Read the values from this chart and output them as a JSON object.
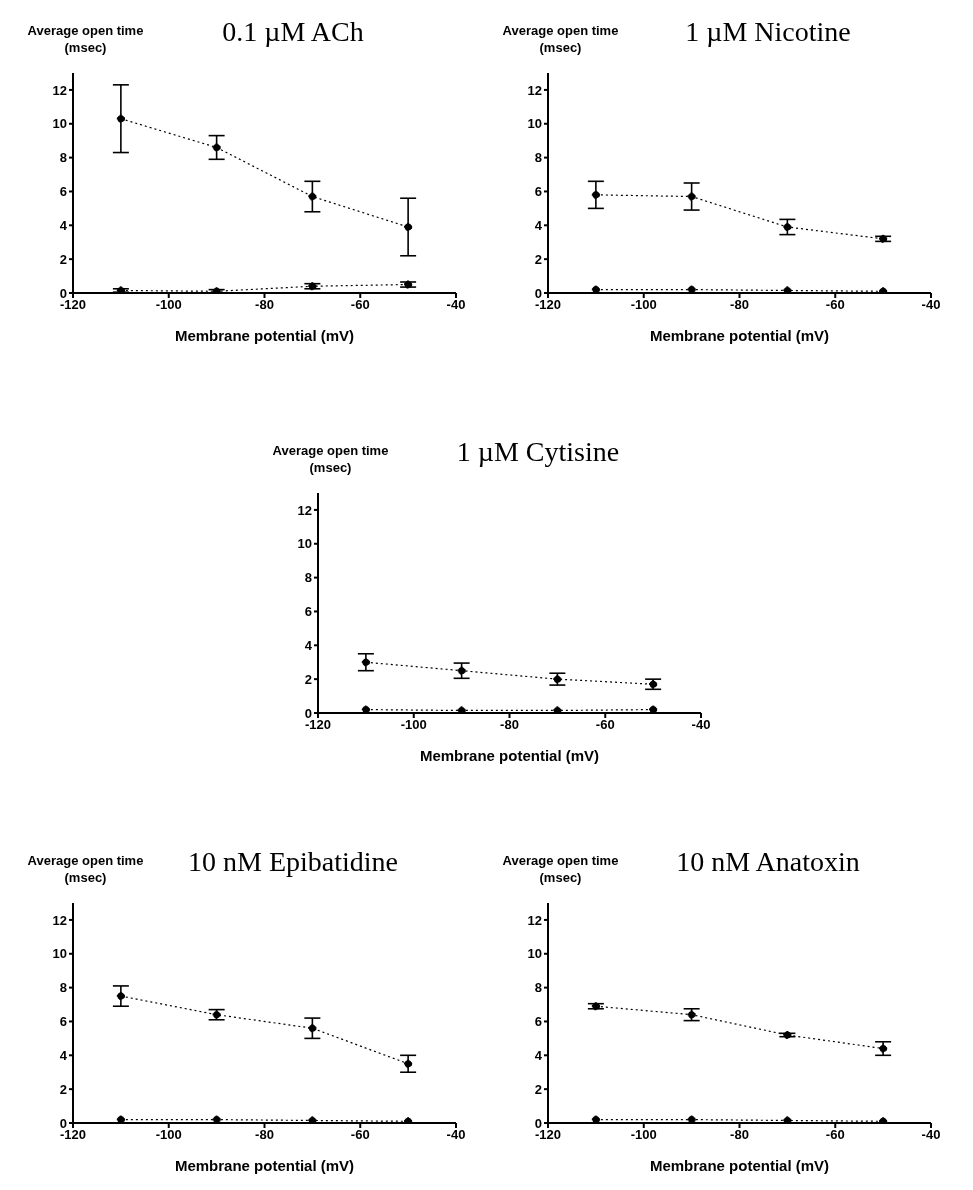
{
  "chart_data": [
    {
      "type": "line",
      "title": "0.1 µM ACh",
      "xlabel": "Membrane potential (mV)",
      "ylabel": "Average open time (msec)",
      "x": [
        -110,
        -90,
        -70,
        -50
      ],
      "xlim": [
        -120,
        -40
      ],
      "xticks": [
        -120,
        -100,
        -80,
        -60,
        -40
      ],
      "ylim": [
        0,
        13
      ],
      "yticks": [
        0,
        2,
        4,
        6,
        8,
        10,
        12
      ],
      "marker": "circle",
      "line_style": "dotted",
      "series": [
        {
          "color": "#000000",
          "values": [
            10.3,
            8.6,
            5.7,
            3.9
          ],
          "errors": [
            2.0,
            0.7,
            0.9,
            1.7
          ]
        },
        {
          "color": "#000000",
          "values": [
            0.15,
            0.1,
            0.4,
            0.5
          ],
          "errors": [
            0.1,
            0.1,
            0.15,
            0.15
          ]
        }
      ]
    },
    {
      "type": "line",
      "title": "1 µM Nicotine",
      "xlabel": "Membrane potential (mV)",
      "ylabel": "Average open time (msec)",
      "x": [
        -110,
        -90,
        -70,
        -50
      ],
      "xlim": [
        -120,
        -40
      ],
      "xticks": [
        -120,
        -100,
        -80,
        -60,
        -40
      ],
      "ylim": [
        0,
        13
      ],
      "yticks": [
        0,
        2,
        4,
        6,
        8,
        10,
        12
      ],
      "marker": "circle",
      "line_style": "dotted",
      "series": [
        {
          "color": "#000000",
          "values": [
            5.8,
            5.7,
            3.9,
            3.2
          ],
          "errors": [
            0.8,
            0.8,
            0.45,
            0.15
          ]
        },
        {
          "color": "#000000",
          "values": [
            0.2,
            0.2,
            0.15,
            0.1
          ]
        }
      ]
    },
    {
      "type": "line",
      "title": "1 µM Cytisine",
      "xlabel": "Membrane potential (mV)",
      "ylabel": "Average open time (msec)",
      "x": [
        -110,
        -90,
        -70,
        -50
      ],
      "xlim": [
        -120,
        -40
      ],
      "xticks": [
        -120,
        -100,
        -80,
        -60,
        -40
      ],
      "ylim": [
        0,
        13
      ],
      "yticks": [
        0,
        2,
        4,
        6,
        8,
        10,
        12
      ],
      "marker": "circle",
      "line_style": "dotted",
      "series": [
        {
          "color": "#000000",
          "values": [
            3.0,
            2.5,
            2.0,
            1.7
          ],
          "errors": [
            0.5,
            0.45,
            0.35,
            0.3
          ]
        },
        {
          "color": "#000000",
          "values": [
            0.2,
            0.15,
            0.15,
            0.2
          ]
        }
      ]
    },
    {
      "type": "line",
      "title": "10 nM Epibatidine",
      "xlabel": "Membrane potential (mV)",
      "ylabel": "Average open time (msec)",
      "x": [
        -110,
        -90,
        -70,
        -50
      ],
      "xlim": [
        -120,
        -40
      ],
      "xticks": [
        -120,
        -100,
        -80,
        -60,
        -40
      ],
      "ylim": [
        0,
        13
      ],
      "yticks": [
        0,
        2,
        4,
        6,
        8,
        10,
        12
      ],
      "marker": "circle",
      "line_style": "dotted",
      "series": [
        {
          "color": "#000000",
          "values": [
            7.5,
            6.4,
            5.6,
            3.5
          ],
          "errors": [
            0.6,
            0.3,
            0.6,
            0.5
          ]
        },
        {
          "color": "#000000",
          "values": [
            0.2,
            0.2,
            0.15,
            0.1
          ]
        }
      ]
    },
    {
      "type": "line",
      "title": "10 nM Anatoxin",
      "xlabel": "Membrane potential (mV)",
      "ylabel": "Average open time (msec)",
      "x": [
        -110,
        -90,
        -70,
        -50
      ],
      "xlim": [
        -120,
        -40
      ],
      "xticks": [
        -120,
        -100,
        -80,
        -60,
        -40
      ],
      "ylim": [
        0,
        13
      ],
      "yticks": [
        0,
        2,
        4,
        6,
        8,
        10,
        12
      ],
      "marker": "circle",
      "line_style": "dotted",
      "series": [
        {
          "color": "#000000",
          "values": [
            6.9,
            6.4,
            5.2,
            4.4
          ],
          "errors": [
            0.15,
            0.35,
            0.1,
            0.4
          ]
        },
        {
          "color": "#000000",
          "values": [
            0.2,
            0.2,
            0.15,
            0.1
          ]
        }
      ]
    }
  ]
}
